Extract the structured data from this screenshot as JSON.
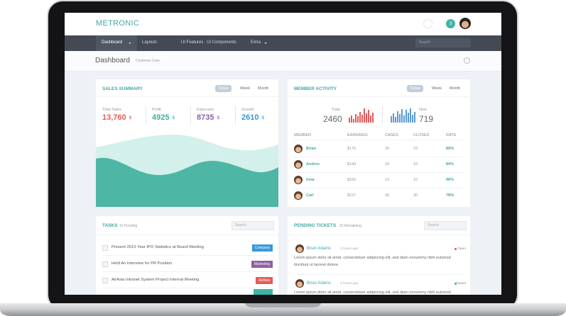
{
  "header": {
    "brand": "METRONIC",
    "badge": "3"
  },
  "nav": {
    "items": [
      "Dashboard",
      "Layouts",
      "UI Features",
      "UI Components",
      "Extra"
    ],
    "search": "Search"
  },
  "page": {
    "title": "Dashboard",
    "subtitle": "Customer Care"
  },
  "sales_summary": {
    "title": "SALES SUMMARY",
    "tabs": [
      "Today",
      "Week",
      "Month"
    ],
    "stats": [
      {
        "label": "Total Sales",
        "value": "13,760",
        "unit": "$"
      },
      {
        "label": "Profit",
        "value": "4925",
        "unit": "$"
      },
      {
        "label": "Expenses",
        "value": "8735",
        "unit": "$"
      },
      {
        "label": "Growth",
        "value": "2610",
        "unit": "$"
      }
    ]
  },
  "member_activity": {
    "title": "MEMBER ACTIVITY",
    "tabs": [
      "Today",
      "Week",
      "Month"
    ],
    "total": {
      "label": "Total",
      "value": "2460",
      "bars": [
        6,
        9,
        5,
        11,
        8,
        14,
        10,
        18,
        12,
        16,
        9,
        13
      ]
    },
    "new": {
      "label": "New",
      "value": "719",
      "bars": [
        8,
        12,
        7,
        15,
        11,
        17,
        9,
        16,
        13,
        18,
        10,
        14
      ]
    },
    "table": {
      "columns": [
        "MEMBER",
        "EARNINGS",
        "CASES",
        "CLOSED",
        "RATE"
      ],
      "rows": [
        [
          "Brian",
          "$175",
          "26",
          "23",
          "89%"
        ],
        [
          "Andres",
          "$140",
          "18",
          "16",
          "84%"
        ],
        [
          "Irina",
          "$150",
          "13",
          "10",
          "96%"
        ],
        [
          "Carl",
          "$227",
          "35",
          "30",
          "78%"
        ]
      ]
    }
  },
  "tasks": {
    "title": "TASKS",
    "subtitle": "16 Pending",
    "search": "Search",
    "items": [
      {
        "text": "Present 2013 Year IPO Statistics at Board Meeting",
        "tag": "Company"
      },
      {
        "text": "Hold An Interview for PR Position",
        "tag": "Marketing"
      },
      {
        "text": "AirAsia Intranet System Project Internal Meeting",
        "tag": "AirAsia"
      }
    ]
  },
  "tickets": {
    "title": "PENDING TICKETS",
    "subtitle": "22 Remaining",
    "search": "Search",
    "items": [
      {
        "name": "Brian Adams",
        "time": "3 hours ago",
        "status": "Open",
        "text": "Lorem ipsum dolor sit amet, consectetuer adipiscing elit, sed diam nonummy nibh euismod tincidunt ut laoreet dolore."
      },
      {
        "name": "Brian Adams",
        "time": "3 hours ago",
        "status": "Closed",
        "text": "Lorem ipsum dolor sit amet, consectetuer adipiscing elit, sed diam nonummy nibh euismod tincidunt ut laoreet dolore."
      }
    ]
  }
}
